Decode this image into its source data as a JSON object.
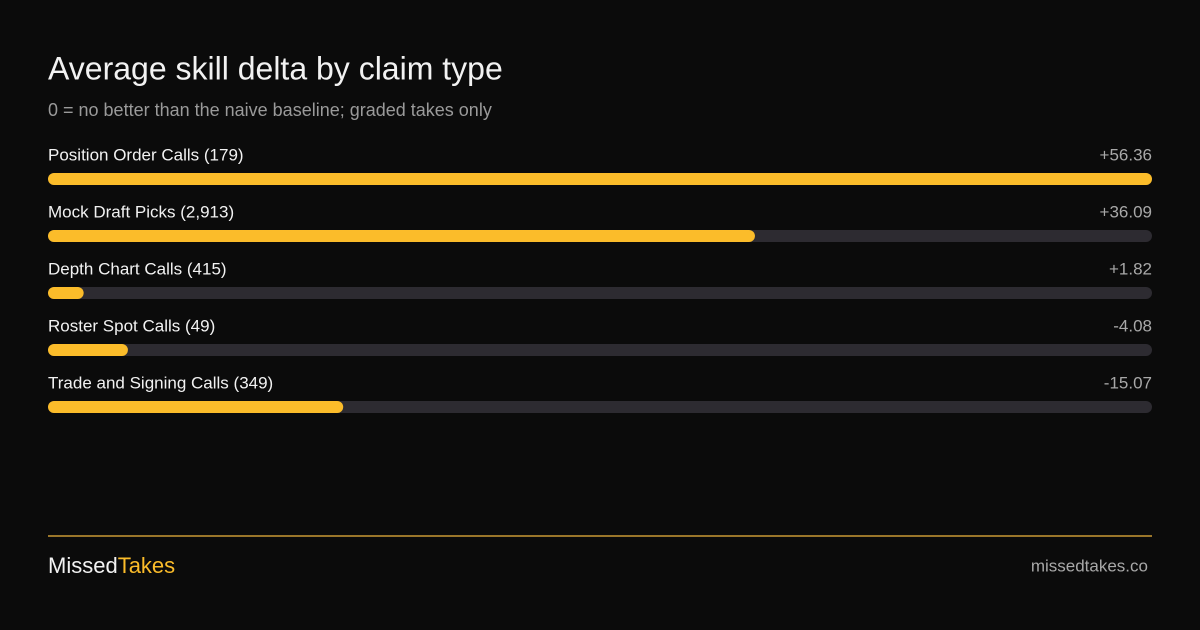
{
  "chart_data": {
    "type": "bar",
    "orientation": "horizontal",
    "title": "Average skill delta by claim type",
    "subtitle": "0 = no better than the naive baseline; graded takes only",
    "categories": [
      "Position Order Calls (179)",
      "Mock Draft Picks (2,913)",
      "Depth Chart Calls (415)",
      "Roster Spot Calls (49)",
      "Trade and Signing Calls (349)"
    ],
    "values": [
      56.36,
      36.09,
      1.82,
      -4.08,
      -15.07
    ],
    "value_labels": [
      "+56.36",
      "+36.09",
      "+1.82",
      "-4.08",
      "-15.07"
    ],
    "color": "#fbbc2a",
    "track_color": "#2d2b31",
    "xlim": [
      0,
      56.36
    ]
  },
  "footer": {
    "brand_first": "Missed",
    "brand_second": "Takes",
    "url": "missedtakes.co"
  }
}
